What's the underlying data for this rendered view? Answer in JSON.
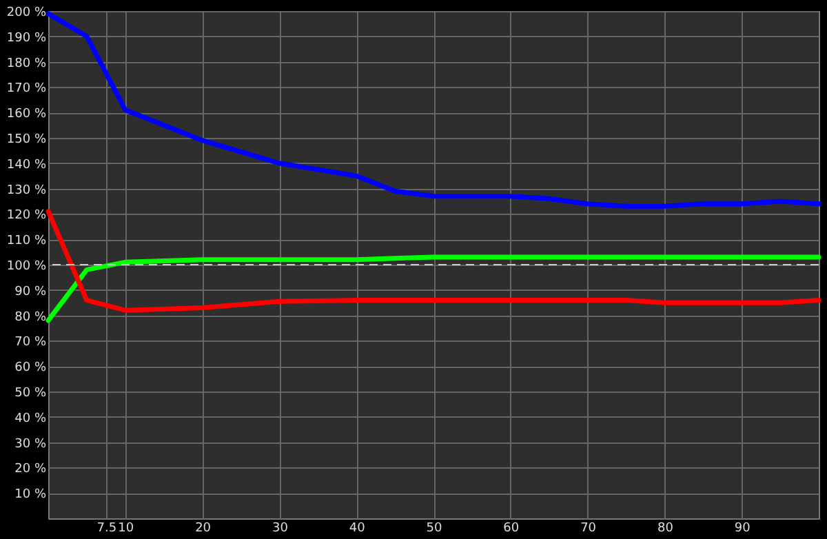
{
  "chart_data": {
    "type": "line",
    "x": [
      0,
      5,
      10,
      20,
      30,
      40,
      45,
      50,
      60,
      65,
      70,
      75,
      80,
      85,
      90,
      95,
      100
    ],
    "series": [
      {
        "color": "#0000ff",
        "values": [
          199,
          190,
          161,
          149,
          140,
          135,
          129,
          127,
          127,
          126,
          124,
          123,
          123,
          124,
          124,
          125,
          124
        ]
      },
      {
        "color": "#00ff00",
        "values": [
          78,
          98,
          101,
          102,
          102,
          102,
          102.5,
          103,
          103,
          103,
          103,
          103,
          103,
          103,
          103,
          103,
          103
        ]
      },
      {
        "color": "#ff0000",
        "values": [
          121,
          86,
          82,
          83,
          85.5,
          86,
          86,
          86,
          86,
          86,
          86,
          86,
          85,
          85,
          85,
          85,
          86
        ]
      }
    ],
    "xlim": [
      0,
      100
    ],
    "ylim": [
      0,
      200
    ],
    "xticks": [
      7.5,
      10,
      20,
      30,
      40,
      50,
      60,
      70,
      80,
      90
    ],
    "yticks": [
      {
        "value": 10,
        "label": "10 %"
      },
      {
        "value": 20,
        "label": "20 %"
      },
      {
        "value": 30,
        "label": "30 %"
      },
      {
        "value": 40,
        "label": "40 %"
      },
      {
        "value": 50,
        "label": "50 %"
      },
      {
        "value": 60,
        "label": "60 %"
      },
      {
        "value": 70,
        "label": "70 %"
      },
      {
        "value": 80,
        "label": "80 %"
      },
      {
        "value": 90,
        "label": "90 %"
      },
      {
        "value": 100,
        "label": "100 %"
      },
      {
        "value": 110,
        "label": "110 %"
      },
      {
        "value": 120,
        "label": "120 %"
      },
      {
        "value": 130,
        "label": "130 %"
      },
      {
        "value": 140,
        "label": "140 %"
      },
      {
        "value": 150,
        "label": "150 %"
      },
      {
        "value": 160,
        "label": "160 %"
      },
      {
        "value": 170,
        "label": "170 %"
      },
      {
        "value": 180,
        "label": "180 %"
      },
      {
        "value": 190,
        "label": "190 %"
      },
      {
        "value": 200,
        "label": "200 %"
      }
    ],
    "ref_lines": [
      {
        "axis": "y",
        "value": 100,
        "color": "#cccccc",
        "line_style": "dashed"
      }
    ],
    "grid": true,
    "marker": "none",
    "line_style": "solid"
  }
}
